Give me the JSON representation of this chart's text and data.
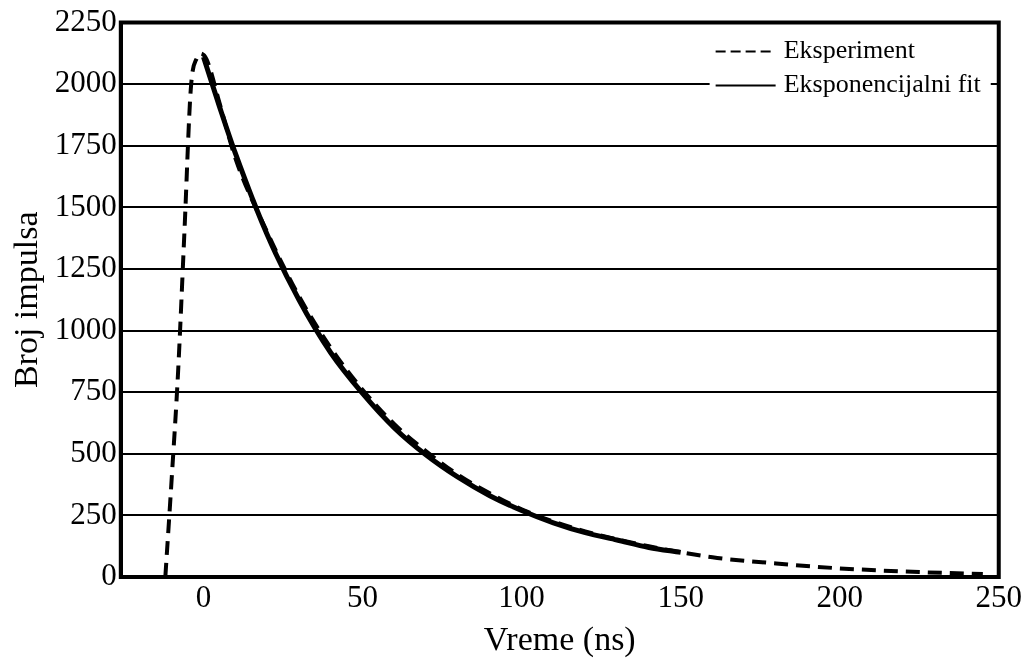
{
  "chart_data": {
    "type": "line",
    "xlabel": "Vreme (ns)",
    "ylabel": "Broj impulsa",
    "xlim": [
      -26,
      250
    ],
    "ylim": [
      0,
      2250
    ],
    "xticks": [
      0,
      50,
      100,
      150,
      200,
      250
    ],
    "yticks": [
      0,
      250,
      500,
      750,
      1000,
      1250,
      1500,
      1750,
      2000,
      2250
    ],
    "grid": "y",
    "legend": "top right",
    "marker": "none",
    "series": [
      {
        "name": "Eksperiment",
        "color": "#000000",
        "line_style": "dashed",
        "x": [
          -12,
          -10,
          -8,
          -6,
          -4,
          -2,
          -1,
          1,
          5,
          10,
          20,
          30,
          40,
          50,
          60,
          70,
          80,
          90,
          100,
          110,
          120,
          140,
          160,
          180,
          200,
          225,
          245
        ],
        "values": [
          0,
          400,
          830,
          1400,
          1980,
          2110,
          2125,
          2100,
          1925,
          1700,
          1400,
          1140,
          930,
          760,
          620,
          510,
          415,
          340,
          275,
          225,
          185,
          125,
          80,
          55,
          35,
          20,
          12
        ]
      },
      {
        "name": "Eksponencijalni fit",
        "color": "#000000",
        "line_style": "solid",
        "x": [
          0,
          5,
          10,
          20,
          30,
          40,
          50,
          60,
          70,
          80,
          90,
          100,
          110,
          120,
          130,
          140,
          150
        ],
        "values": [
          2110,
          1910,
          1720,
          1390,
          1125,
          910,
          745,
          605,
          495,
          405,
          330,
          270,
          220,
          180,
          150,
          120,
          100
        ]
      }
    ]
  }
}
